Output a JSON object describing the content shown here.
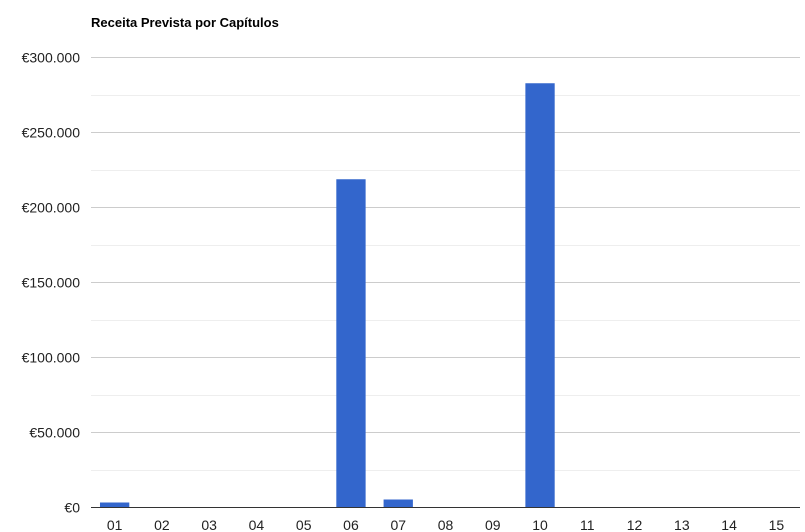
{
  "chart_data": {
    "type": "bar",
    "title": "Receita Prevista por Capítulos",
    "xlabel": "",
    "ylabel": "",
    "categories": [
      "01",
      "02",
      "03",
      "04",
      "05",
      "06",
      "07",
      "08",
      "09",
      "10",
      "11",
      "12",
      "13",
      "14",
      "15"
    ],
    "values": [
      3000,
      0,
      0,
      0,
      0,
      218500,
      5000,
      0,
      0,
      282500,
      0,
      0,
      0,
      0,
      0
    ],
    "ylim": [
      0,
      300000
    ],
    "y_ticks": [
      0,
      50000,
      100000,
      150000,
      200000,
      250000,
      300000
    ],
    "y_tick_labels": [
      "€0",
      "€50.000",
      "€100.000",
      "€150.000",
      "€200.000",
      "€250.000",
      "€300.000"
    ],
    "minor_gridlines": true,
    "grid": true,
    "legend": "none",
    "colors": {
      "bar": "#3366cc",
      "major_grid": "#cccccc",
      "minor_grid": "#eeeeee",
      "baseline": "#333333"
    }
  }
}
